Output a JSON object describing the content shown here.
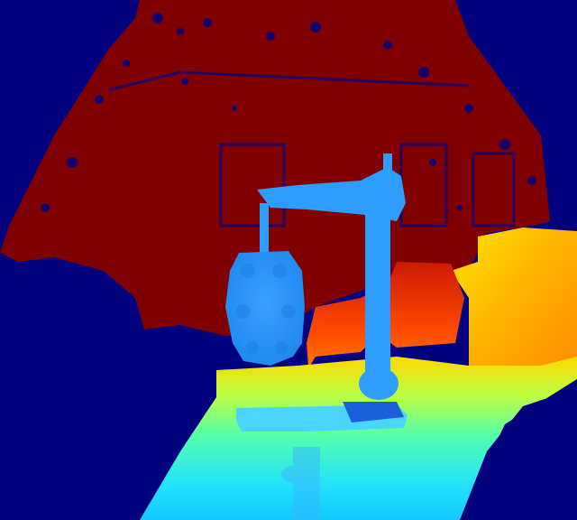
{
  "image": {
    "kind": "depth-map",
    "colormap": "jet",
    "colors": {
      "background_invalid": "#00007f",
      "far": "#800000",
      "far_mid": "#cc1a00",
      "mid_far": "#ff6a00",
      "mid": "#ffd800",
      "mid_near": "#7fff7f",
      "near": "#22e0ff",
      "nearest": "#1e90ff"
    },
    "regions": [
      {
        "name": "background-wall",
        "depth": "far"
      },
      {
        "name": "machine-frame",
        "depth": "nearest"
      },
      {
        "name": "padded-cylinder",
        "depth": "nearest"
      },
      {
        "name": "right-table-block",
        "depth": "mid"
      },
      {
        "name": "floor-platform",
        "depth": "near-gradient"
      },
      {
        "name": "invalid-foreground",
        "depth": "invalid"
      }
    ]
  }
}
